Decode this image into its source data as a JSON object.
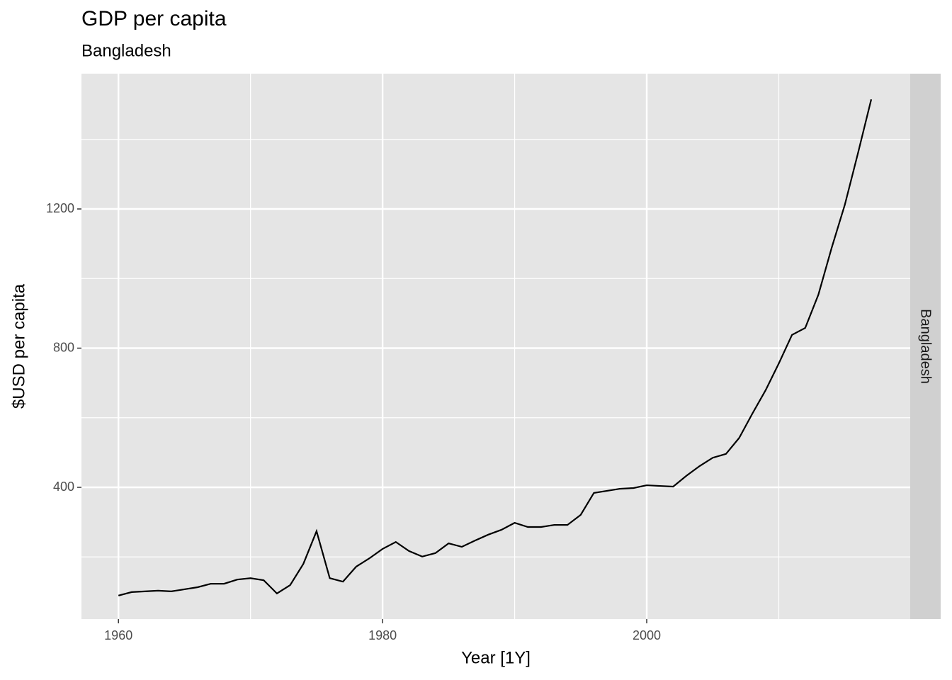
{
  "chart_data": {
    "type": "line",
    "title": "GDP per capita",
    "subtitle": "Bangladesh",
    "x_label": "Year [1Y]",
    "y_label": "$USD per capita",
    "facet_label": "Bangladesh",
    "x": [
      1960,
      1961,
      1962,
      1963,
      1964,
      1965,
      1966,
      1967,
      1968,
      1969,
      1970,
      1971,
      1972,
      1973,
      1974,
      1975,
      1976,
      1977,
      1978,
      1979,
      1980,
      1981,
      1982,
      1983,
      1984,
      1985,
      1986,
      1987,
      1988,
      1989,
      1990,
      1991,
      1992,
      1993,
      1994,
      1995,
      1996,
      1997,
      1998,
      1999,
      2000,
      2001,
      2002,
      2003,
      2004,
      2005,
      2006,
      2007,
      2008,
      2009,
      2010,
      2011,
      2012,
      2013,
      2014,
      2015,
      2016,
      2017
    ],
    "series": [
      {
        "name": "Bangladesh",
        "color": "#000000",
        "values": [
          89,
          99,
          101,
          103,
          101,
          107,
          113,
          123,
          123,
          135,
          139,
          133,
          95,
          119,
          180,
          274,
          139,
          129,
          172,
          196,
          223,
          243,
          217,
          201,
          211,
          239,
          229,
          247,
          264,
          278,
          298,
          286,
          286,
          292,
          292,
          321,
          384,
          390,
          396,
          398,
          406,
          404,
          402,
          433,
          461,
          485,
          496,
          542,
          612,
          679,
          756,
          838,
          858,
          954,
          1088,
          1212,
          1361,
          1515
        ]
      }
    ],
    "xlim": [
      1957.2,
      2019.95
    ],
    "xticks": [
      1960,
      1980,
      2000
    ],
    "minor_xticks": [
      1970,
      1990,
      2010
    ],
    "ylim": [
      21.4,
      1588.8
    ],
    "yticks": [
      400,
      800,
      1200
    ],
    "minor_yticks": [
      200,
      600,
      1000,
      1400
    ],
    "grid": true
  }
}
